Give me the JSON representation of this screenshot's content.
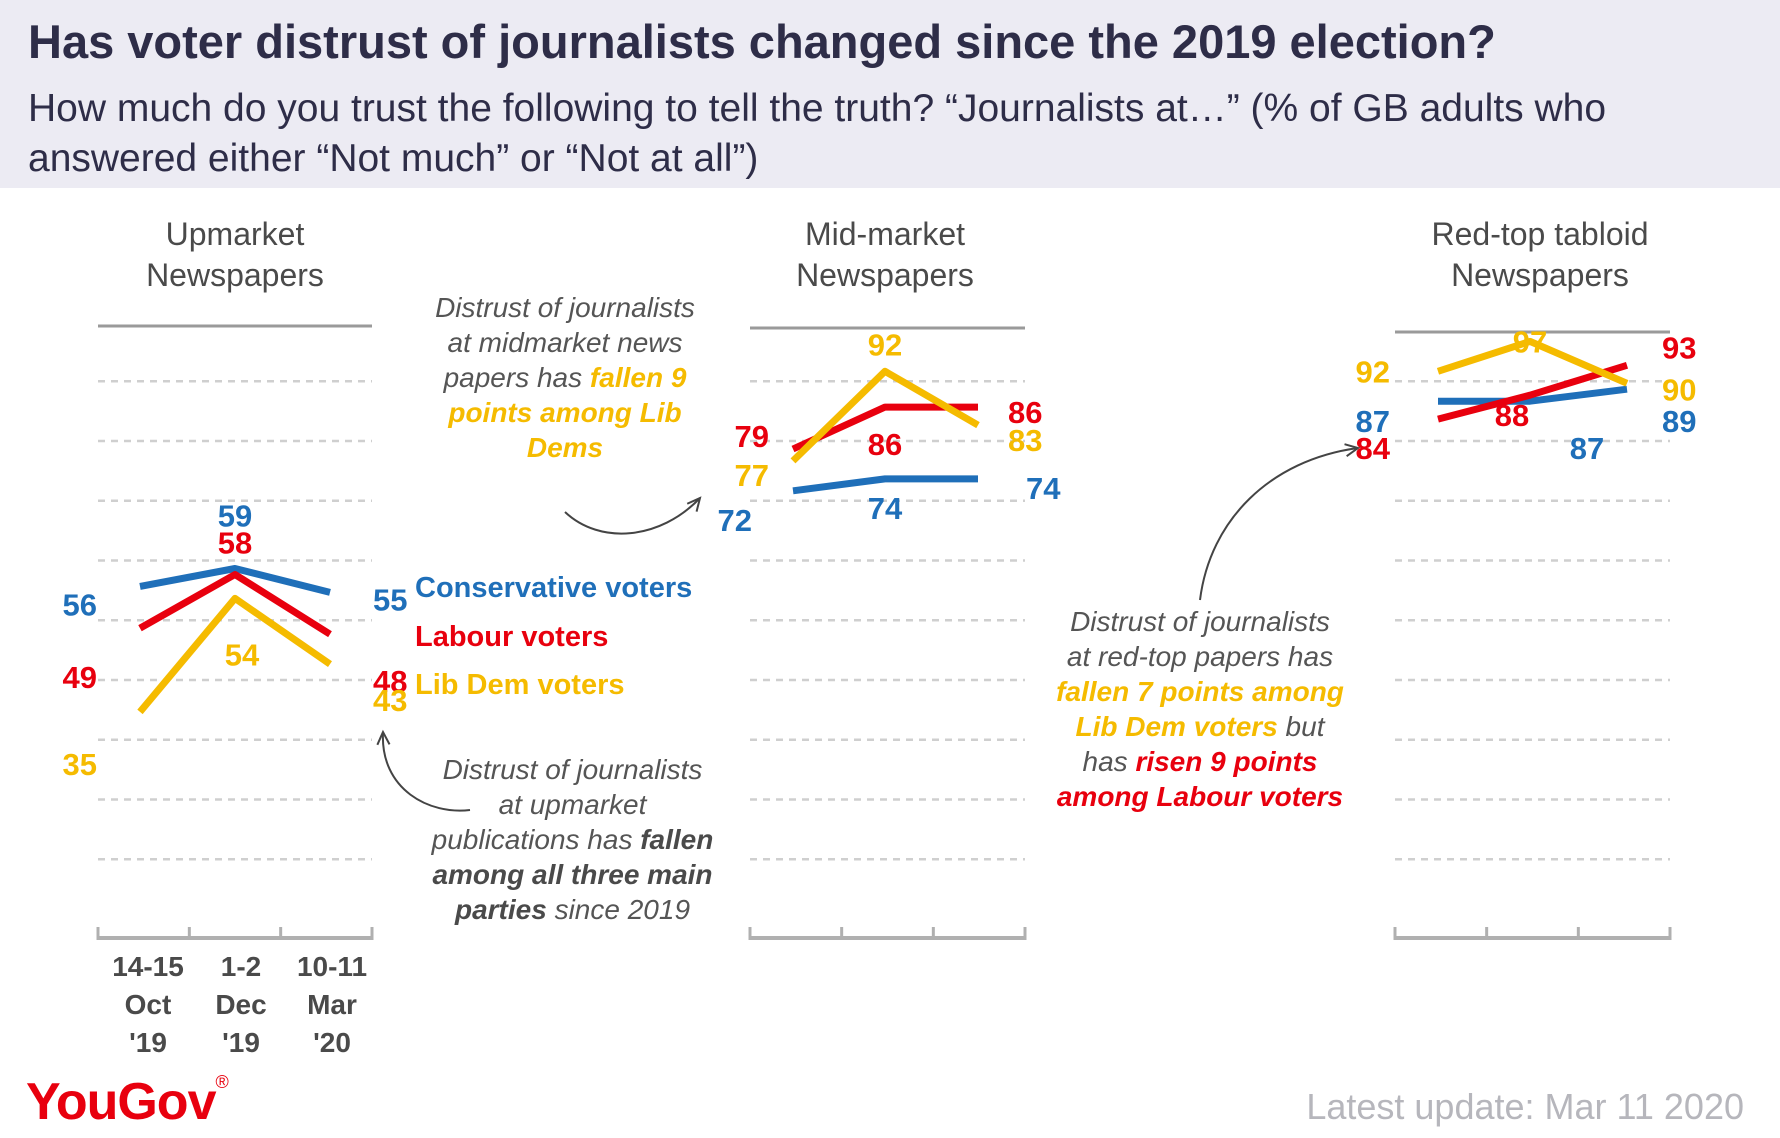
{
  "title": "Has voter distrust of journalists changed since the 2019 election?",
  "subtitle": "How much do you trust the following to tell the truth? “Journalists at…” (% of GB adults who answered either “Not much” or “Not at all”)",
  "colors": {
    "conservative": "#1f6fb9",
    "labour": "#e8000e",
    "libdem": "#f5bb00",
    "header_bg": "#ecebf3",
    "title": "#2e2d48"
  },
  "x_labels": [
    [
      "14-15",
      "Oct",
      "'19"
    ],
    [
      "1-2",
      "Dec",
      "'19"
    ],
    [
      "10-11",
      "Mar",
      "'20"
    ]
  ],
  "legend": {
    "conservative": "Conservative voters",
    "labour": "Labour voters",
    "libdem": "Lib Dem voters"
  },
  "annotations": {
    "upmarket": {
      "text": "Distrust of journalists at upmarket publications has ",
      "bold": "fallen among all three main parties",
      "tail": " since 2019"
    },
    "midmarket": {
      "text": "Distrust of journalists at midmarket news papers has ",
      "bold": "fallen 9 points among Lib Dems"
    },
    "redtop": {
      "text": "Distrust of journalists at red-top papers has ",
      "bold1": "fallen 7 points among Lib Dem voters",
      "mid": " but has ",
      "bold2": "risen 9 points among Labour voters"
    }
  },
  "footer": {
    "logo": "YouGov",
    "logo_mark": "®",
    "update": "Latest update: Mar 11 2020"
  },
  "chart_data": [
    {
      "type": "line",
      "title": "Upmarket Newspapers",
      "categories": [
        "14-15 Oct '19",
        "1-2 Dec '19",
        "10-11 Mar '20"
      ],
      "ylim": [
        0,
        100
      ],
      "series": [
        {
          "name": "Conservative voters",
          "key": "conservative",
          "values": [
            56,
            59,
            55
          ]
        },
        {
          "name": "Labour voters",
          "key": "labour",
          "values": [
            49,
            58,
            48
          ]
        },
        {
          "name": "Lib Dem voters",
          "key": "libdem",
          "values": [
            35,
            54,
            43
          ]
        }
      ]
    },
    {
      "type": "line",
      "title": "Mid-market Newspapers",
      "categories": [
        "14-15 Oct '19",
        "1-2 Dec '19",
        "10-11 Mar '20"
      ],
      "ylim": [
        0,
        100
      ],
      "series": [
        {
          "key": "conservative",
          "values": [
            72,
            74,
            74
          ]
        },
        {
          "key": "labour",
          "values": [
            79,
            86,
            86
          ]
        },
        {
          "key": "libdem",
          "values": [
            77,
            92,
            83
          ]
        }
      ]
    },
    {
      "type": "line",
      "title": "Red-top tabloid Newspapers",
      "categories": [
        "14-15 Oct '19",
        "1-2 Dec '19",
        "10-11 Mar '20"
      ],
      "ylim": [
        0,
        100
      ],
      "series": [
        {
          "key": "conservative",
          "values": [
            87,
            87,
            89
          ]
        },
        {
          "key": "labour",
          "values": [
            84,
            88,
            93
          ]
        },
        {
          "key": "libdem",
          "values": [
            92,
            97,
            90
          ]
        }
      ]
    }
  ]
}
